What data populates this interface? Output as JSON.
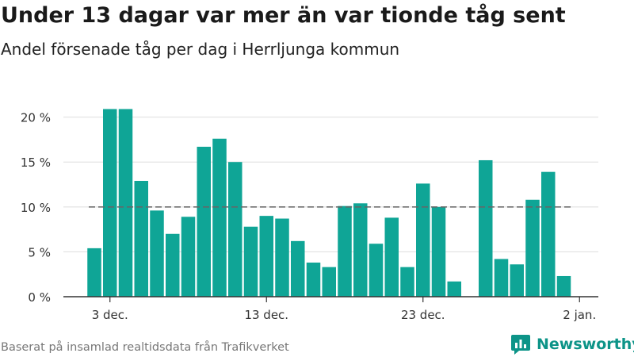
{
  "title": "Under 13 dagar var mer än var tionde tåg sent",
  "subtitle": "Andel försenade tåg per dag i Herrljunga kommun",
  "footer": "Baserat på insamlad realtidsdata från Trafikverket",
  "brand": "Newsworthy",
  "colors": {
    "bar": "#0fa596",
    "grid": "#dddddd",
    "reference": "#666666",
    "brand": "#0d9488"
  },
  "chart_data": {
    "type": "bar",
    "title": "Under 13 dagar var mer än var tionde tåg sent",
    "subtitle": "Andel försenade tåg per dag i Herrljunga kommun",
    "xlabel": "",
    "ylabel": "",
    "x_ticks": [
      "3 dec.",
      "13 dec.",
      "23 dec.",
      "2 jan."
    ],
    "y_ticks": [
      "0 %",
      "5 %",
      "10 %",
      "15 %",
      "20 %"
    ],
    "ylim": [
      0,
      22
    ],
    "reference_line": 10,
    "grid": true,
    "categories": [
      "2 dec.",
      "3 dec.",
      "4 dec.",
      "5 dec.",
      "6 dec.",
      "7 dec.",
      "8 dec.",
      "9 dec.",
      "10 dec.",
      "11 dec.",
      "12 dec.",
      "13 dec.",
      "14 dec.",
      "15 dec.",
      "16 dec.",
      "17 dec.",
      "18 dec.",
      "19 dec.",
      "20 dec.",
      "21 dec.",
      "22 dec.",
      "23 dec.",
      "24 dec.",
      "25 dec.",
      "26 dec.",
      "27 dec.",
      "28 dec.",
      "29 dec.",
      "30 dec.",
      "31 dec.",
      "1 jan."
    ],
    "values": [
      5.4,
      20.9,
      20.9,
      12.9,
      9.6,
      7.0,
      8.9,
      16.7,
      17.6,
      15.0,
      7.8,
      9.0,
      8.7,
      6.2,
      3.8,
      3.3,
      10.1,
      10.4,
      5.9,
      8.8,
      3.3,
      12.6,
      10.0,
      1.7,
      null,
      15.2,
      4.2,
      3.6,
      10.8,
      13.9,
      2.3
    ]
  }
}
